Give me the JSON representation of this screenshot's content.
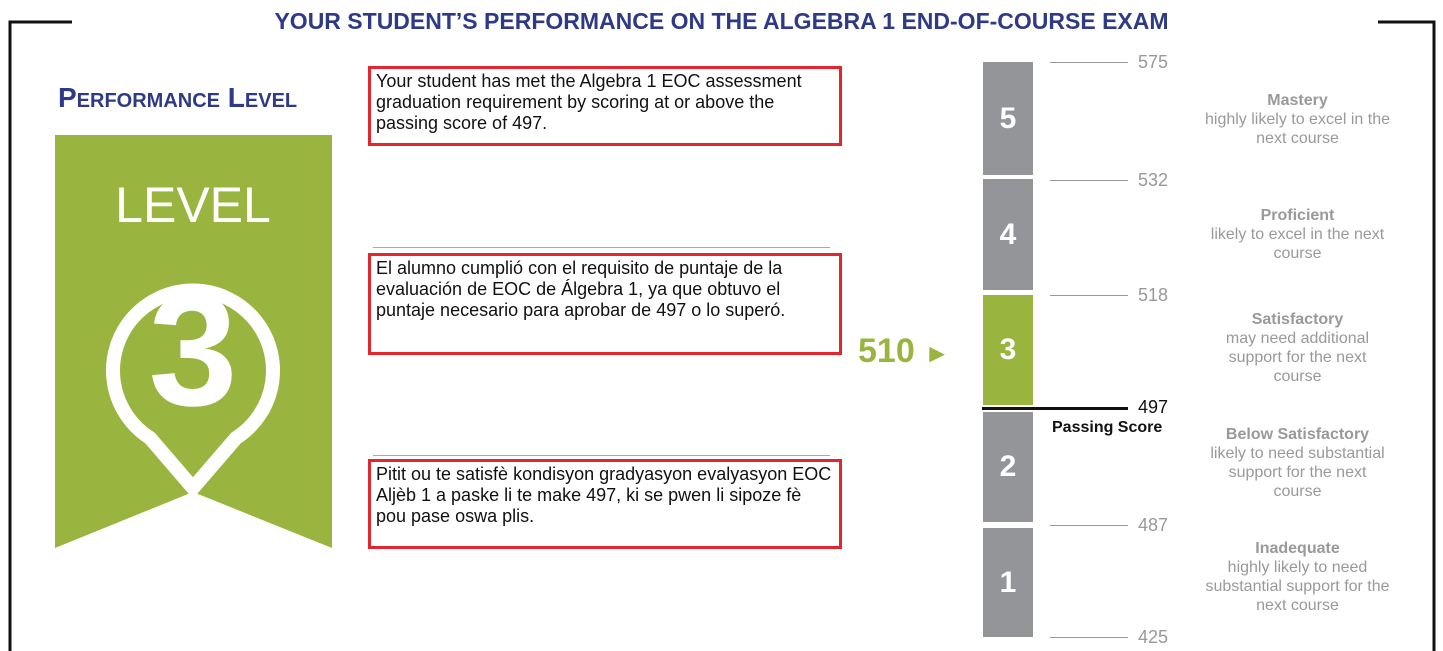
{
  "title": "YOUR STUDENT’S PERFORMANCE ON THE ALGEBRA 1 END-OF-COURSE EXAM",
  "performance": {
    "heading": "Performance Level",
    "badge_label": "LEVEL",
    "badge_level": "3"
  },
  "messages": [
    "Your student has met the Algebra 1 EOC assessment graduation requirement by scoring at or above the passing score of 497.",
    "El alumno cumplió con el requisito de puntaje de la evaluación de EOC de Álgebra 1, ya que obtuvo el puntaje necesario para aprobar de 497 o lo superó.",
    "Pitit ou te satisfè kondisyon gradyasyon evalyasyon EOC Aljèb 1 a paske li te make 497, ki se pwen li sipoze fè pou pase oswa plis."
  ],
  "scale": {
    "student_score": "510",
    "student_arrow": "►",
    "passing_label": "Passing Score",
    "scores": [
      "575",
      "532",
      "518",
      "497",
      "487",
      "425"
    ],
    "levels": [
      {
        "number": "5",
        "name": "Mastery",
        "description": "highly likely to excel in the next course"
      },
      {
        "number": "4",
        "name": "Proficient",
        "description": "likely to excel in the next course"
      },
      {
        "number": "3",
        "name": "Satisfactory",
        "description": "may need additional support for the next course"
      },
      {
        "number": "2",
        "name": "Below Satisfactory",
        "description": "likely to need substantial support for the next course"
      },
      {
        "number": "1",
        "name": "Inadequate",
        "description": "highly likely to need substantial support for the next course"
      }
    ]
  }
}
